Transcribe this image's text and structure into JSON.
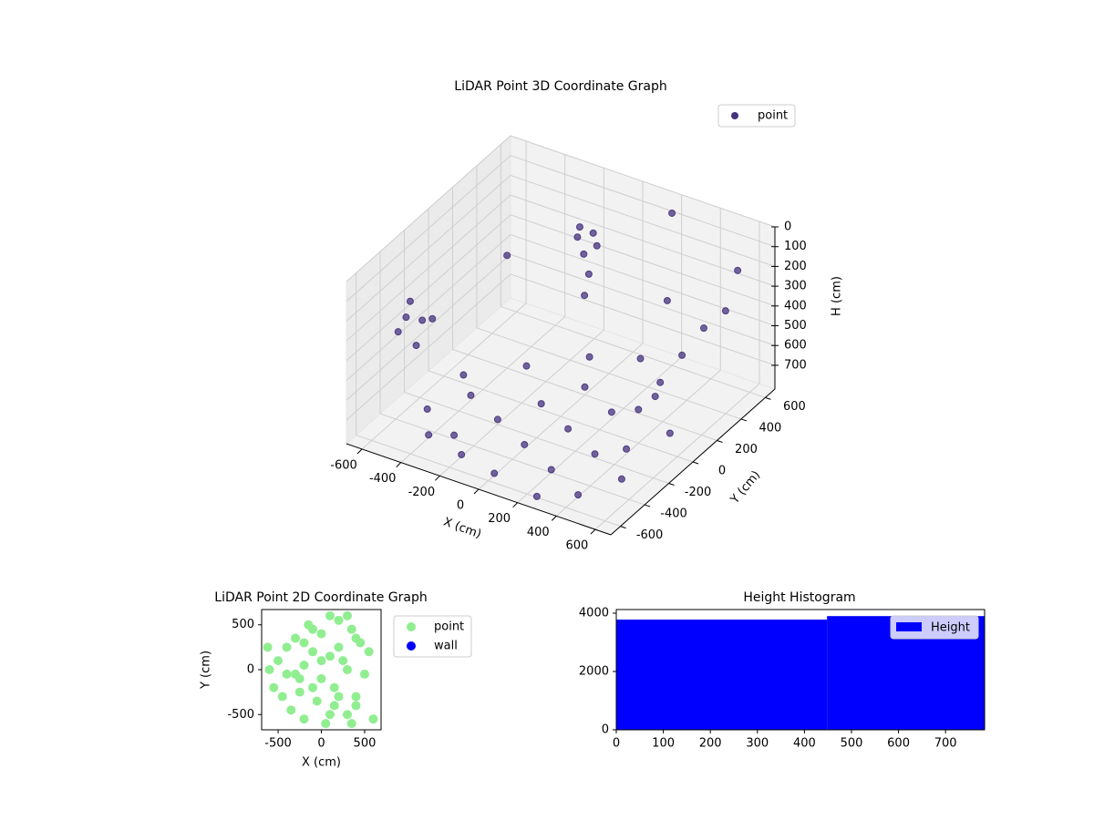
{
  "chart_data": [
    {
      "type": "scatter3d",
      "title": "LiDAR Point 3D Coordinate Graph",
      "x_label": "X (cm)",
      "y_label": "Y (cm)",
      "z_label": "H (cm)",
      "xlim": [
        -680,
        680
      ],
      "ylim": [
        -680,
        680
      ],
      "zlim": [
        820,
        0
      ],
      "xticks": [
        -600,
        -400,
        -200,
        0,
        200,
        400,
        600
      ],
      "yticks": [
        -600,
        -400,
        -200,
        0,
        200,
        400,
        600
      ],
      "zticks": [
        0,
        100,
        200,
        300,
        400,
        500,
        600,
        700
      ],
      "grid": true,
      "legend": "upper right",
      "series": [
        {
          "name": "point",
          "color": "#46327e",
          "x": [
            -500,
            -400,
            -300,
            -200,
            -100,
            0,
            100,
            200,
            300,
            400,
            500,
            0,
            200,
            -300,
            300,
            -100,
            500,
            100,
            -500,
            400,
            -200,
            0,
            250,
            -400,
            -650,
            -650,
            -650,
            -640,
            -660,
            -650,
            -100,
            -50,
            0,
            -150,
            -80,
            -60,
            -70,
            400,
            450,
            500,
            550,
            600,
            -400,
            200,
            600,
            300
          ],
          "y": [
            -300,
            -100,
            -400,
            -200,
            0,
            -300,
            -100,
            -400,
            -200,
            -500,
            -300,
            200,
            100,
            200,
            300,
            400,
            100,
            500,
            0,
            -100,
            -500,
            -550,
            -600,
            -450,
            -300,
            -200,
            -100,
            -250,
            0,
            -150,
            300,
            350,
            300,
            400,
            320,
            330,
            310,
            0,
            100,
            200,
            300,
            400,
            200,
            600,
            500,
            400
          ],
          "z": [
            790,
            795,
            800,
            795,
            790,
            800,
            795,
            805,
            800,
            810,
            805,
            780,
            785,
            775,
            780,
            770,
            790,
            765,
            780,
            795,
            810,
            810,
            815,
            805,
            450,
            350,
            500,
            400,
            550,
            600,
            110,
            100,
            120,
            130,
            200,
            300,
            400,
            650,
            550,
            450,
            350,
            300,
            250,
            50,
            150,
            350
          ]
        }
      ]
    },
    {
      "type": "scatter",
      "title": "LiDAR Point 2D Coordinate Graph",
      "x_label": "X (cm)",
      "y_label": "Y (cm)",
      "xlim": [
        -690,
        690
      ],
      "ylim": [
        -670,
        670
      ],
      "xticks": [
        -500,
        0,
        500
      ],
      "yticks": [
        -500,
        0,
        500
      ],
      "legend": "outside upper right",
      "series": [
        {
          "name": "point",
          "color": "#90ee90",
          "x": [
            -600,
            -550,
            -500,
            -450,
            -400,
            -350,
            -300,
            -250,
            -200,
            -150,
            -100,
            -50,
            0,
            50,
            100,
            150,
            200,
            250,
            300,
            350,
            400,
            450,
            500,
            550,
            600,
            -300,
            -200,
            -100,
            0,
            100,
            200,
            300,
            400,
            -400,
            -200,
            0,
            200,
            400,
            100,
            300,
            -100,
            150,
            -250,
            350,
            -620
          ],
          "y": [
            0,
            -200,
            100,
            -300,
            250,
            -450,
            350,
            -100,
            -550,
            500,
            200,
            -350,
            400,
            -600,
            600,
            -200,
            550,
            100,
            -500,
            450,
            -300,
            300,
            -50,
            200,
            -550,
            -50,
            50,
            -200,
            -100,
            150,
            -300,
            0,
            -400,
            -50,
            300,
            100,
            250,
            350,
            -500,
            600,
            450,
            -400,
            -250,
            -600,
            250
          ]
        },
        {
          "name": "wall",
          "color": "#0000ff",
          "x": [],
          "y": []
        }
      ]
    },
    {
      "type": "hist",
      "title": "Height Histogram",
      "name": "Height",
      "color": "#0000ff",
      "bins": [
        0,
        448,
        783
      ],
      "counts": [
        3780,
        3900
      ],
      "xlim": [
        0,
        783
      ],
      "ylim": [
        0,
        4125
      ],
      "xticks": [
        0,
        100,
        200,
        300,
        400,
        500,
        600,
        700
      ],
      "yticks": [
        0,
        2000,
        4000
      ],
      "legend": "upper right"
    }
  ]
}
